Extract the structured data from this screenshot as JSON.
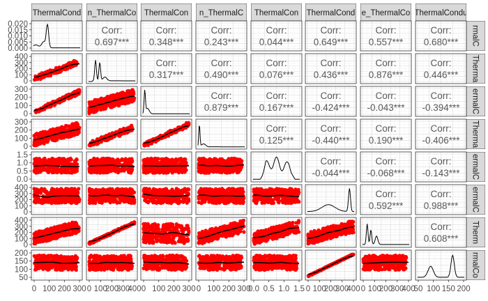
{
  "chart_data": {
    "type": "pairs-matrix",
    "n_vars": 8,
    "strip_top": [
      "ThermalCond",
      "n_ThermalCo",
      "ThermalCon",
      "n_ThermalC",
      "ThermalCon",
      "ThermalCond",
      "e_ThermalCo",
      "ThermalCondu"
    ],
    "strip_right": [
      "rmalC",
      "Therma",
      "ermalC",
      "Therma",
      "ermalC",
      "ermalC",
      "Therm",
      "rmalCo"
    ],
    "corr_label": "Corr:",
    "correlations": [
      {
        "row": 1,
        "col": 2,
        "value": "0.697***"
      },
      {
        "row": 1,
        "col": 3,
        "value": "0.348***"
      },
      {
        "row": 1,
        "col": 4,
        "value": "0.243***"
      },
      {
        "row": 1,
        "col": 5,
        "value": "0.044***"
      },
      {
        "row": 1,
        "col": 6,
        "value": "0.649***"
      },
      {
        "row": 1,
        "col": 7,
        "value": "0.557***"
      },
      {
        "row": 1,
        "col": 8,
        "value": "0.680***"
      },
      {
        "row": 2,
        "col": 3,
        "value": "0.317***"
      },
      {
        "row": 2,
        "col": 4,
        "value": "0.490***"
      },
      {
        "row": 2,
        "col": 5,
        "value": "0.076***"
      },
      {
        "row": 2,
        "col": 6,
        "value": "0.436***"
      },
      {
        "row": 2,
        "col": 7,
        "value": "0.876***"
      },
      {
        "row": 2,
        "col": 8,
        "value": "0.446***"
      },
      {
        "row": 3,
        "col": 4,
        "value": "0.879***"
      },
      {
        "row": 3,
        "col": 5,
        "value": "0.167***"
      },
      {
        "row": 3,
        "col": 6,
        "value": "-0.424***"
      },
      {
        "row": 3,
        "col": 7,
        "value": "-0.043***"
      },
      {
        "row": 3,
        "col": 8,
        "value": "-0.394***"
      },
      {
        "row": 4,
        "col": 5,
        "value": "0.125***"
      },
      {
        "row": 4,
        "col": 6,
        "value": "-0.440***"
      },
      {
        "row": 4,
        "col": 7,
        "value": "0.190***"
      },
      {
        "row": 4,
        "col": 8,
        "value": "-0.406***"
      },
      {
        "row": 5,
        "col": 6,
        "value": "-0.044***"
      },
      {
        "row": 5,
        "col": 7,
        "value": "-0.068***"
      },
      {
        "row": 5,
        "col": 8,
        "value": "-0.143***"
      },
      {
        "row": 6,
        "col": 7,
        "value": "0.592***"
      },
      {
        "row": 6,
        "col": 8,
        "value": "0.988***"
      },
      {
        "row": 7,
        "col": 8,
        "value": "0.608***"
      }
    ],
    "row_y_ticks": [
      [
        "0.020",
        "0.015",
        "0.010",
        "0.005",
        "0.000"
      ],
      [
        "400",
        "300",
        "200",
        "100",
        "0"
      ],
      [
        "300",
        "200",
        "100",
        "0"
      ],
      [
        "300",
        "200",
        "100",
        "0"
      ],
      [
        "1.5",
        "1.0",
        "0.5",
        "0.0"
      ],
      [
        "400",
        "300",
        "200",
        "100",
        "0"
      ],
      [
        "400",
        "300",
        "200",
        "100",
        "0"
      ],
      [
        "200",
        "150",
        "100",
        "50"
      ]
    ],
    "col_x_ticks": [
      [
        "0",
        "100",
        "200",
        "300"
      ],
      [
        "0",
        "100",
        "200",
        "300",
        "400"
      ],
      [
        "0",
        "100",
        "200",
        "300"
      ],
      [
        "0",
        "100",
        "200",
        "300"
      ],
      [
        "0.0",
        "0.5",
        "1.0",
        "1.5"
      ],
      [
        "0",
        "100",
        "200",
        "300",
        "400"
      ],
      [
        "0",
        "100",
        "200",
        "300",
        "400"
      ],
      [
        "50",
        "100",
        "150",
        "200"
      ]
    ],
    "point_color": "#ff0000",
    "smooth_color": "#000000",
    "panel_background": "#ffffff",
    "grid": true,
    "strip_fill": "#d9d9d9"
  }
}
